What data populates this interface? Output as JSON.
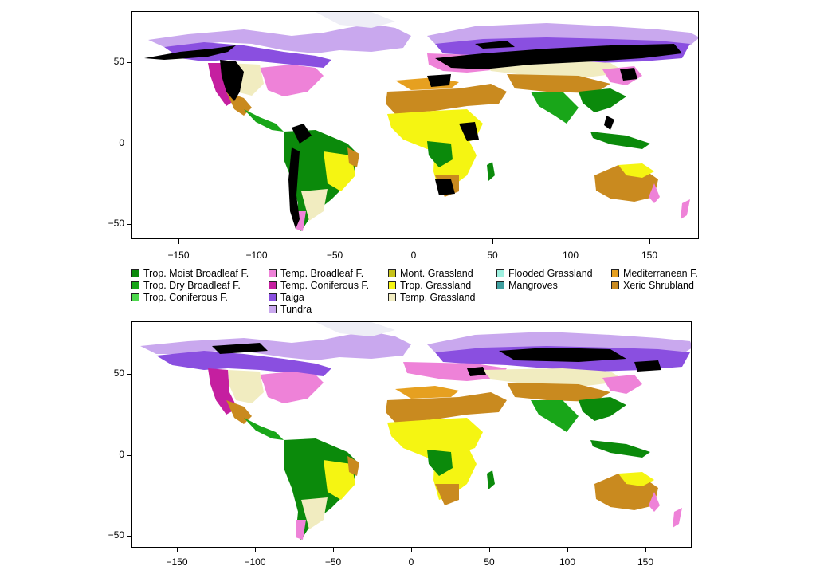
{
  "maps": [
    {
      "name": "top-map",
      "yticks": [
        "50",
        "0",
        "−50"
      ],
      "xticks": [
        "−150",
        "−100",
        "−50",
        "0",
        "50",
        "100",
        "150"
      ],
      "overlay": "occurrence points (black)"
    },
    {
      "name": "bottom-map",
      "yticks": [
        "50",
        "0",
        "−50"
      ],
      "xticks": [
        "−150",
        "−100",
        "−50",
        "0",
        "50",
        "100",
        "150"
      ],
      "overlay": "occurrence points (black)"
    }
  ],
  "legend": {
    "columns": [
      [
        {
          "label": "Trop. Moist Broadleaf F.",
          "color": "#0b8a0b"
        },
        {
          "label": "Trop. Dry Broadleaf F.",
          "color": "#19a619"
        },
        {
          "label": "Trop. Coniferous F.",
          "color": "#4cd94c"
        }
      ],
      [
        {
          "label": "Temp. Broadleaf F.",
          "color": "#ee82d8"
        },
        {
          "label": "Temp. Coniferous F.",
          "color": "#c51fa0"
        },
        {
          "label": "Taiga",
          "color": "#8a4fe0"
        },
        {
          "label": "Tundra",
          "color": "#c9a8ee"
        }
      ],
      [
        {
          "label": "Mont. Grassland",
          "color": "#c6c219"
        },
        {
          "label": "Trop. Grassland",
          "color": "#f5f512"
        },
        {
          "label": "Temp. Grassland",
          "color": "#f1ecc0"
        }
      ],
      [
        {
          "label": "Flooded Grassland",
          "color": "#9ef0e0"
        },
        {
          "label": "Mangroves",
          "color": "#3f9f9f"
        }
      ],
      [
        {
          "label": "Mediterranean F.",
          "color": "#e6a020"
        },
        {
          "label": "Xeric Shrubland",
          "color": "#c98a1f"
        }
      ]
    ]
  }
}
